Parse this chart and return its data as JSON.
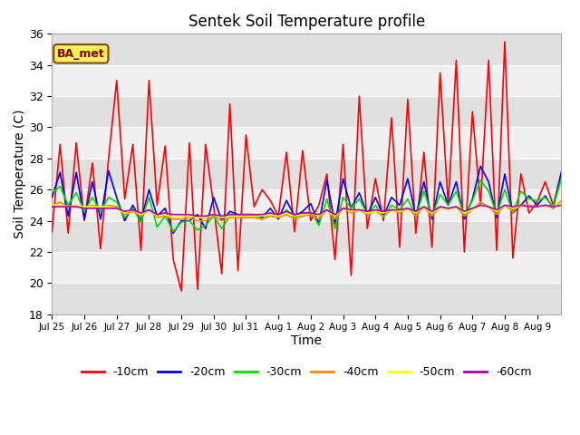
{
  "title": "Sentek Soil Temperature profile",
  "xlabel": "Time",
  "ylabel": "Soil Temperature (C)",
  "ylim": [
    18,
    36
  ],
  "yticks": [
    18,
    20,
    22,
    24,
    26,
    28,
    30,
    32,
    34,
    36
  ],
  "annotation": "BA_met",
  "colors": {
    "-10cm": "#ff0000",
    "-20cm": "#0000ff",
    "-30cm": "#00dd00",
    "-40cm": "#ff8800",
    "-50cm": "#ffff00",
    "-60cm": "#aa00aa"
  },
  "legend_labels": [
    "-10cm",
    "-20cm",
    "-30cm",
    "-40cm",
    "-50cm",
    "-60cm"
  ],
  "x_tick_labels": [
    "Jul 25",
    "Jul 26",
    "Jul 27",
    "Jul 28",
    "Jul 29",
    "Jul 30",
    "Jul 31",
    "Aug 1",
    "Aug 2",
    "Aug 3",
    "Aug 4",
    "Aug 5",
    "Aug 6",
    "Aug 7",
    "Aug 8",
    "Aug 9"
  ],
  "stripe_light": "#f0f0f0",
  "stripe_dark": "#e0e0e0",
  "fig_bg": "#ffffff",
  "data": {
    "-10cm": [
      23.3,
      28.9,
      23.2,
      29.0,
      24.0,
      27.7,
      22.2,
      28.0,
      33.0,
      25.4,
      28.9,
      22.1,
      33.0,
      25.0,
      28.8,
      21.5,
      19.5,
      29.0,
      19.6,
      28.9,
      24.9,
      20.6,
      31.5,
      20.8,
      29.5,
      24.9,
      26.0,
      25.3,
      24.3,
      28.4,
      23.3,
      28.5,
      24.0,
      25.0,
      27.0,
      21.5,
      28.9,
      20.5,
      32.0,
      23.5,
      26.7,
      24.0,
      30.6,
      22.3,
      31.8,
      23.2,
      28.4,
      22.3,
      33.5,
      25.0,
      34.3,
      22.0,
      31.0,
      25.0,
      34.3,
      22.1,
      35.5,
      21.6,
      27.0,
      24.5,
      25.2,
      26.5,
      25.0,
      27.1
    ],
    "-20cm": [
      25.5,
      27.1,
      24.3,
      27.1,
      24.1,
      26.5,
      24.1,
      27.2,
      25.5,
      24.0,
      25.0,
      24.0,
      26.0,
      24.3,
      24.8,
      23.2,
      24.0,
      24.0,
      24.4,
      23.5,
      25.5,
      24.0,
      24.6,
      24.4,
      24.4,
      24.4,
      24.2,
      24.8,
      24.1,
      25.3,
      24.3,
      24.6,
      25.1,
      23.8,
      26.6,
      23.8,
      26.7,
      24.8,
      25.8,
      24.4,
      25.5,
      24.3,
      25.5,
      25.0,
      26.7,
      24.3,
      26.5,
      24.1,
      26.5,
      25.0,
      26.5,
      24.1,
      25.4,
      27.5,
      26.5,
      24.2,
      27.0,
      24.5,
      25.0,
      25.6,
      25.0,
      25.6,
      24.8,
      27.1
    ],
    "-30cm": [
      25.8,
      26.2,
      25.0,
      25.8,
      24.6,
      25.5,
      24.6,
      25.5,
      25.2,
      24.2,
      24.8,
      23.9,
      25.5,
      23.6,
      24.3,
      23.3,
      23.9,
      24.0,
      23.4,
      23.7,
      24.3,
      23.5,
      24.3,
      24.3,
      24.2,
      24.3,
      24.1,
      24.4,
      24.2,
      24.7,
      24.2,
      24.4,
      24.6,
      23.7,
      25.4,
      23.5,
      25.5,
      24.8,
      25.4,
      24.4,
      25.0,
      24.2,
      25.0,
      24.7,
      25.4,
      24.3,
      25.9,
      24.3,
      25.7,
      25.0,
      25.9,
      24.3,
      25.3,
      26.6,
      25.9,
      24.4,
      26.0,
      24.5,
      25.9,
      25.4,
      25.3,
      25.5,
      24.9,
      26.7
    ],
    "-40cm": [
      25.0,
      25.2,
      24.9,
      25.0,
      24.8,
      25.0,
      24.8,
      25.0,
      24.9,
      24.4,
      24.6,
      24.3,
      24.7,
      24.2,
      24.3,
      24.1,
      24.1,
      24.2,
      24.0,
      24.0,
      24.3,
      24.0,
      24.2,
      24.2,
      24.2,
      24.2,
      24.1,
      24.3,
      24.2,
      24.4,
      24.1,
      24.3,
      24.4,
      24.1,
      24.7,
      24.1,
      24.8,
      24.5,
      24.7,
      24.4,
      24.6,
      24.3,
      24.7,
      24.5,
      24.8,
      24.3,
      24.9,
      24.3,
      24.9,
      24.7,
      24.9,
      24.3,
      24.7,
      25.2,
      24.9,
      24.4,
      25.0,
      24.6,
      25.0,
      25.0,
      24.9,
      25.0,
      24.8,
      25.3
    ],
    "-50cm": [
      25.0,
      25.0,
      24.9,
      25.0,
      24.9,
      24.9,
      24.9,
      24.9,
      24.8,
      24.5,
      24.7,
      24.4,
      24.7,
      24.3,
      24.4,
      24.2,
      24.3,
      24.3,
      24.2,
      24.2,
      24.4,
      24.2,
      24.3,
      24.3,
      24.3,
      24.3,
      24.3,
      24.4,
      24.3,
      24.5,
      24.3,
      24.4,
      24.5,
      24.3,
      24.7,
      24.3,
      24.8,
      24.6,
      24.7,
      24.5,
      24.6,
      24.5,
      24.7,
      24.6,
      24.8,
      24.5,
      24.9,
      24.5,
      24.9,
      24.7,
      24.9,
      24.5,
      24.7,
      25.0,
      24.9,
      24.6,
      25.0,
      24.8,
      25.0,
      24.9,
      24.9,
      25.0,
      24.9,
      25.1
    ],
    "-60cm": [
      24.9,
      24.9,
      24.9,
      24.9,
      24.8,
      24.8,
      24.8,
      24.8,
      24.8,
      24.6,
      24.7,
      24.5,
      24.7,
      24.4,
      24.5,
      24.4,
      24.4,
      24.4,
      24.3,
      24.3,
      24.4,
      24.3,
      24.4,
      24.4,
      24.4,
      24.4,
      24.4,
      24.5,
      24.4,
      24.6,
      24.4,
      24.5,
      24.5,
      24.4,
      24.7,
      24.4,
      24.8,
      24.7,
      24.7,
      24.6,
      24.7,
      24.6,
      24.7,
      24.7,
      24.8,
      24.6,
      24.9,
      24.6,
      24.9,
      24.8,
      24.9,
      24.6,
      24.8,
      25.0,
      24.9,
      24.7,
      25.0,
      24.9,
      25.0,
      24.9,
      24.9,
      25.0,
      24.9,
      25.0
    ]
  },
  "n_points": 64,
  "total_days": 15.75
}
